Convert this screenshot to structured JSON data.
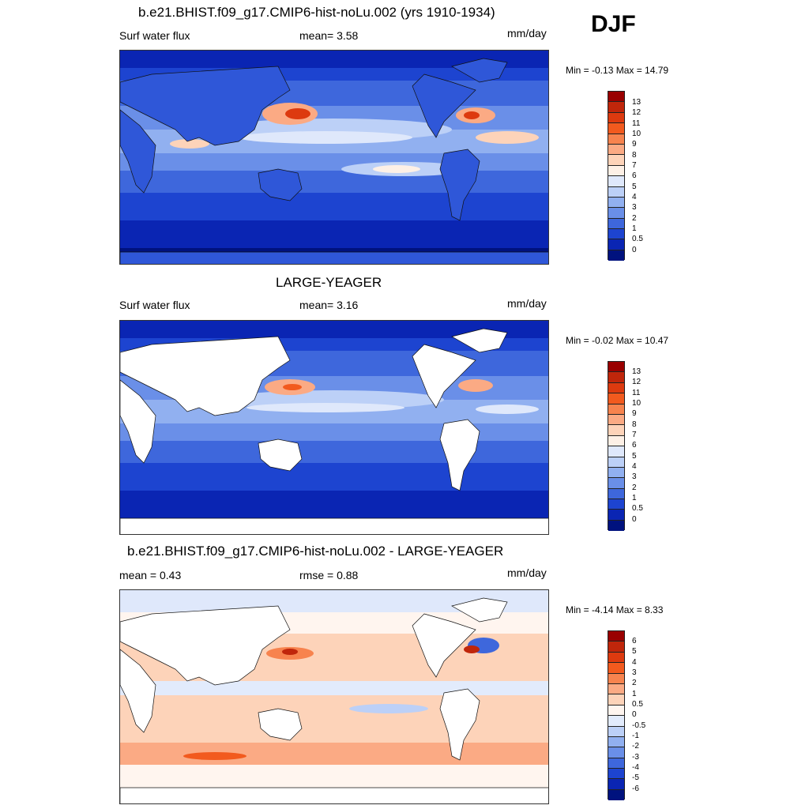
{
  "season": "DJF",
  "panels": [
    {
      "title": "b.e21.BHIST.f09_g17.CMIP6-hist-noLu.002 (yrs 1910-1934)",
      "left": "Surf water flux",
      "center": "mean=   3.58",
      "units": "mm/day",
      "minmax": "Min =  -0.13 Max =  14.79",
      "levels": [
        "13",
        "12",
        "11",
        "10",
        "9",
        "8",
        "7",
        "6",
        "5",
        "4",
        "3",
        "2",
        "1",
        "0.5",
        "0"
      ],
      "colors": [
        "#990000",
        "#c0260b",
        "#dd3a0f",
        "#f25a1e",
        "#f7834e",
        "#fbaa84",
        "#fdd3b9",
        "#fdf0e6",
        "#dfe8fb",
        "#bcd0f7",
        "#91b0f0",
        "#6a8fe8",
        "#3e67dc",
        "#1d44d0",
        "#0a25b3",
        "#00127e"
      ]
    },
    {
      "title": "LARGE-YEAGER",
      "left": "Surf water flux",
      "center": "mean=   3.16",
      "units": "mm/day",
      "minmax": "Min =  -0.02 Max =  10.47",
      "levels": [
        "13",
        "12",
        "11",
        "10",
        "9",
        "8",
        "7",
        "6",
        "5",
        "4",
        "3",
        "2",
        "1",
        "0.5",
        "0"
      ],
      "colors": [
        "#990000",
        "#c0260b",
        "#dd3a0f",
        "#f25a1e",
        "#f7834e",
        "#fbaa84",
        "#fdd3b9",
        "#fdf0e6",
        "#dfe8fb",
        "#bcd0f7",
        "#91b0f0",
        "#6a8fe8",
        "#3e67dc",
        "#1d44d0",
        "#0a25b3",
        "#00127e"
      ]
    },
    {
      "title": "b.e21.BHIST.f09_g17.CMIP6-hist-noLu.002 - LARGE-YEAGER",
      "left": "mean =   0.43",
      "center": "rmse =   0.88",
      "units": "mm/day",
      "minmax": "Min =  -4.14 Max =   8.33",
      "levels": [
        "6",
        "5",
        "4",
        "3",
        "2",
        "1",
        "0.5",
        "0",
        "-0.5",
        "-1",
        "-2",
        "-3",
        "-4",
        "-5",
        "-6"
      ],
      "colors": [
        "#990000",
        "#c0260b",
        "#dd3a0f",
        "#f25a1e",
        "#f7834e",
        "#fbaa84",
        "#fdd3b9",
        "#fff5ef",
        "#e2ebfc",
        "#bcd0f7",
        "#91b0f0",
        "#6a8fe8",
        "#3e67dc",
        "#1d44d0",
        "#0a25b3",
        "#00127e"
      ]
    }
  ]
}
